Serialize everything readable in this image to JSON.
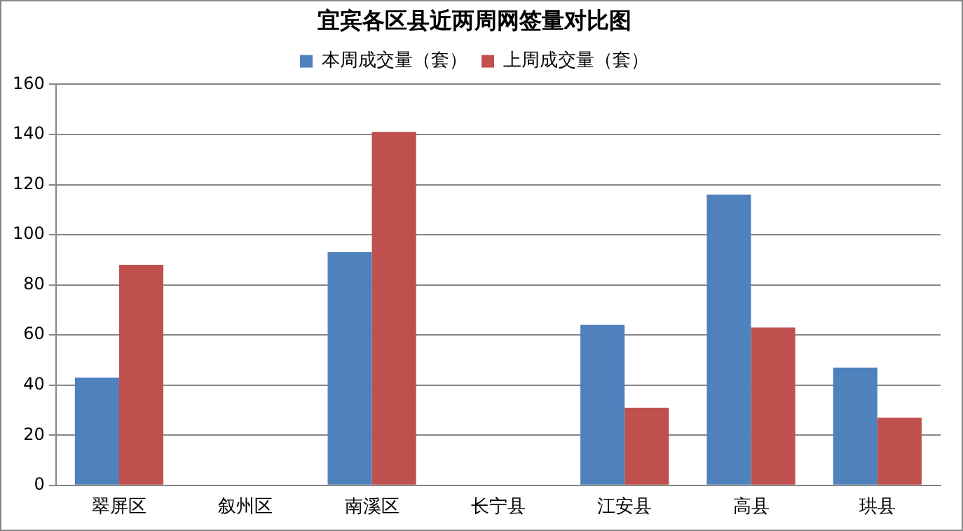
{
  "chart_data": {
    "type": "bar",
    "title": "宜宾各区县近两周网签量对比图",
    "categories": [
      "翠屏区",
      "叙州区",
      "南溪区",
      "长宁县",
      "江安县",
      "高县",
      "珙县"
    ],
    "series": [
      {
        "name": "本周成交量（套）",
        "color": "#4f81bd",
        "values": [
          43,
          null,
          93,
          null,
          64,
          116,
          47
        ]
      },
      {
        "name": "上周成交量（套）",
        "color": "#c0504d",
        "values": [
          88,
          null,
          141,
          null,
          31,
          63,
          27
        ]
      }
    ],
    "ylim": [
      0,
      160
    ],
    "yticks": [
      0,
      20,
      40,
      60,
      80,
      100,
      120,
      140,
      160
    ],
    "grid": "y",
    "legend": "top"
  }
}
